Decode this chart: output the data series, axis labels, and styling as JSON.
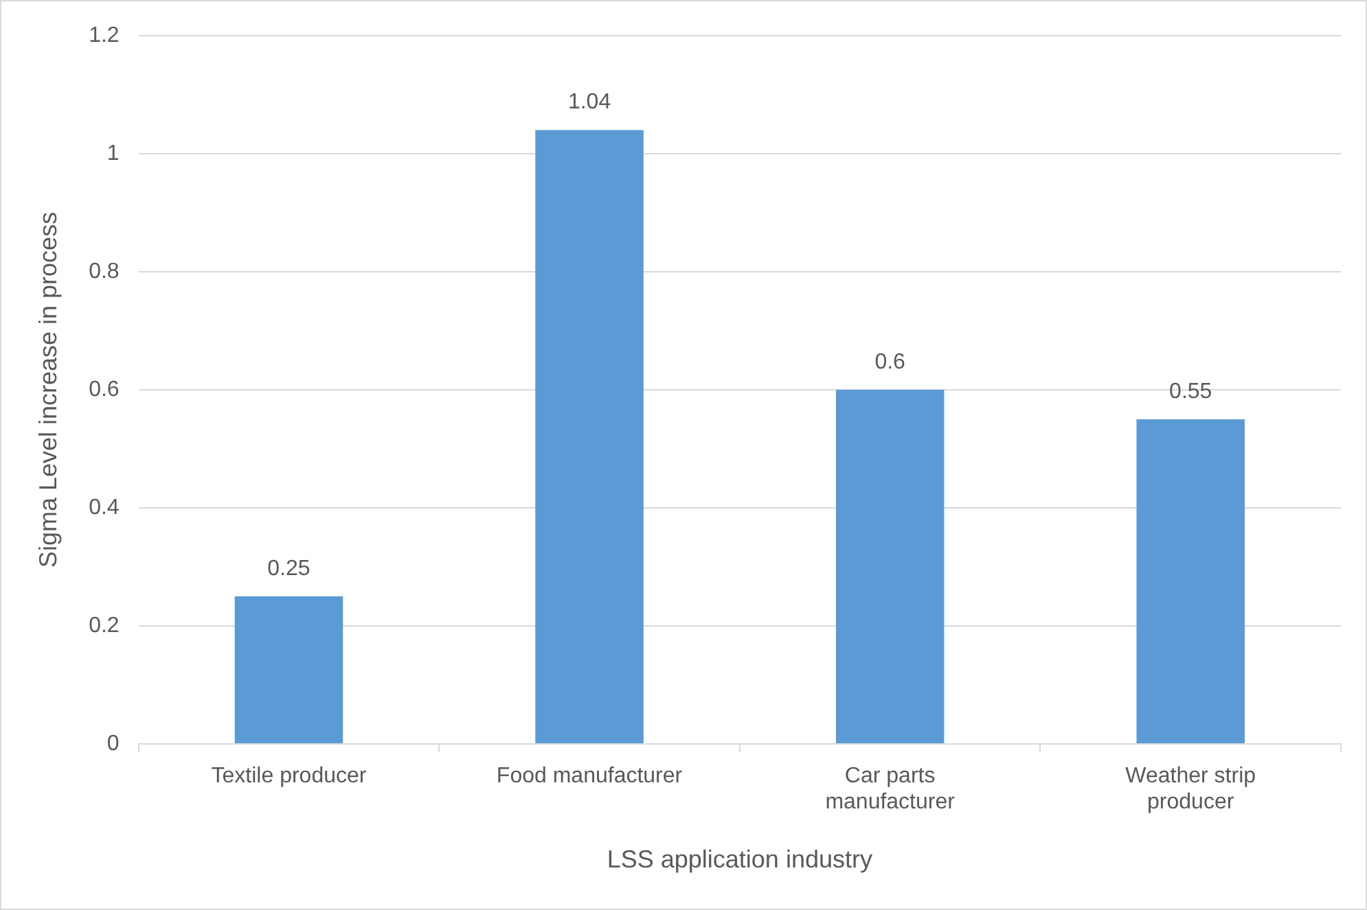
{
  "chart_data": {
    "type": "bar",
    "xlabel": "LSS application industry",
    "ylabel": "Sigma Level increase in process",
    "categories": [
      "Textile producer",
      "Food manufacturer",
      "Car parts manufacturer",
      "Weather strip producer"
    ],
    "values": [
      0.25,
      1.04,
      0.6,
      0.55
    ],
    "color": "#5b9bd5",
    "ylim": [
      0,
      1.2
    ],
    "yticks": [
      0,
      0.2,
      0.4,
      0.6,
      0.8,
      1,
      1.2
    ],
    "grid": "y",
    "data_labels": true,
    "legend": false
  }
}
